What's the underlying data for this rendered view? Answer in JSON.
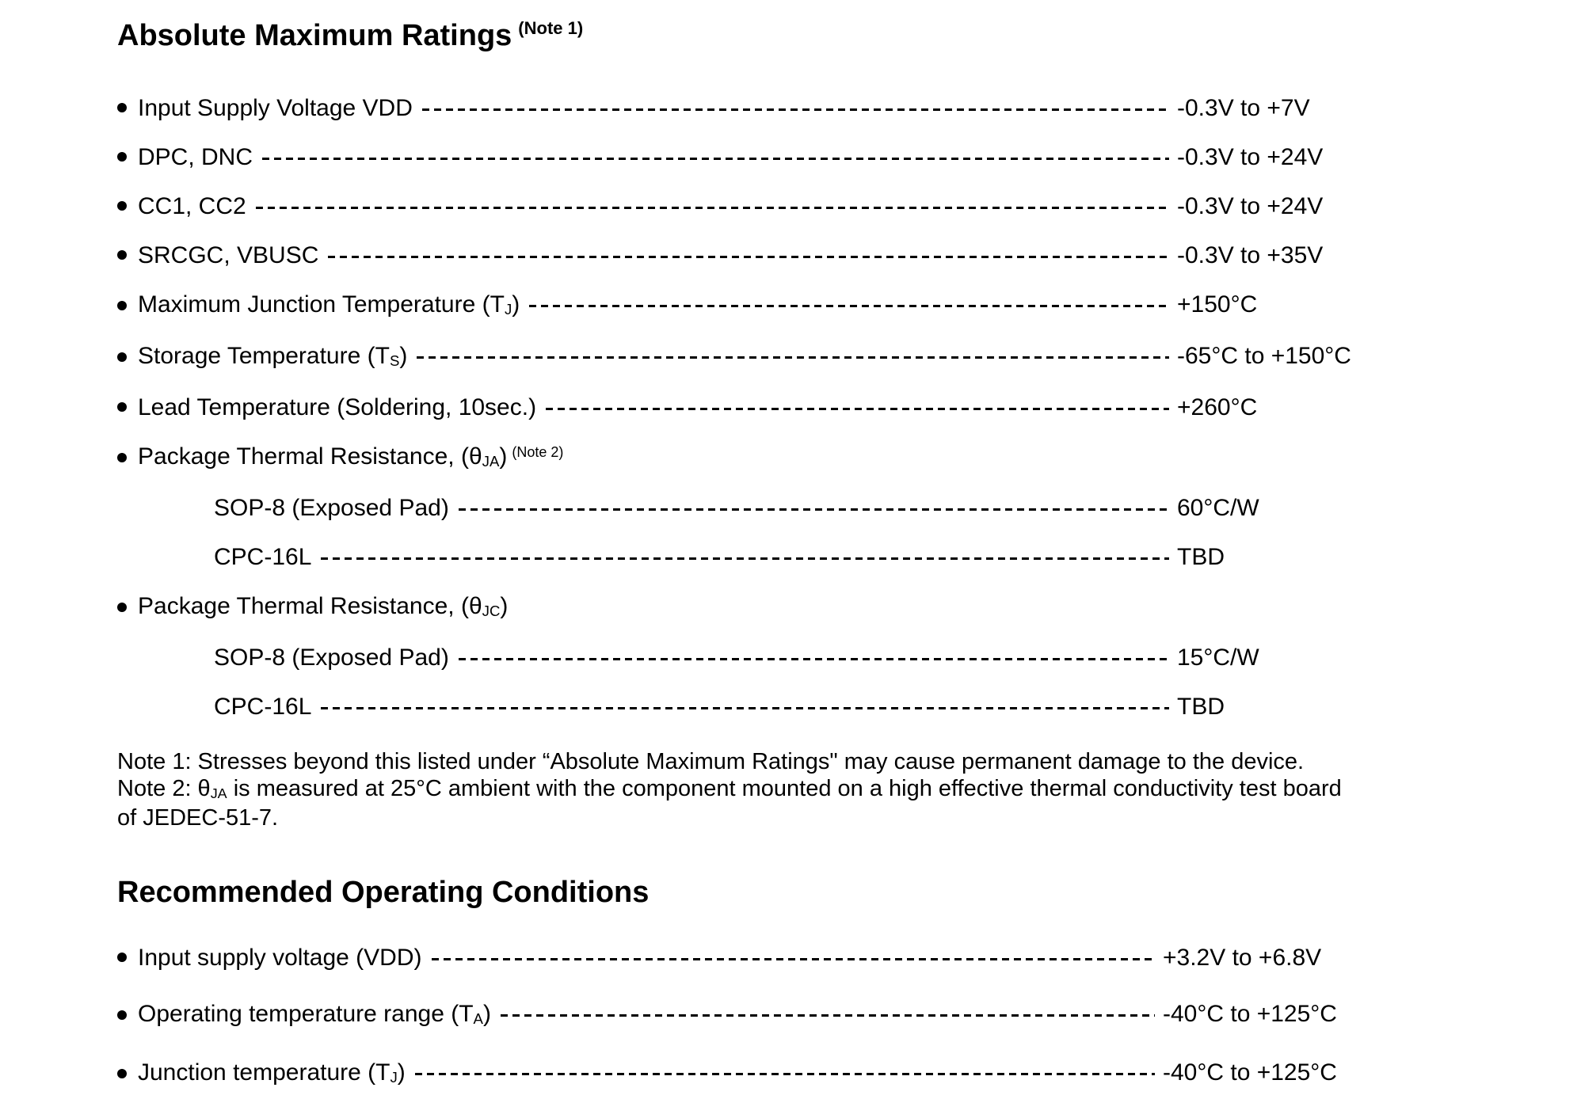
{
  "colors": {
    "text": "#000000",
    "background": "#ffffff"
  },
  "doc": {
    "sections": [
      {
        "id": "amr",
        "title": "Absolute Maximum Ratings",
        "title_sup": "(Note 1)",
        "rows": [
          {
            "bullet": true,
            "indent": false,
            "parts": [
              {
                "t": "Input Supply Voltage VDD"
              }
            ],
            "leader": true,
            "value": "-0.3V to +7V"
          },
          {
            "bullet": true,
            "indent": false,
            "parts": [
              {
                "t": "DPC, DNC"
              }
            ],
            "leader": true,
            "value": "-0.3V to +24V"
          },
          {
            "bullet": true,
            "indent": false,
            "parts": [
              {
                "t": "CC1, CC2"
              }
            ],
            "leader": true,
            "value": "-0.3V to +24V"
          },
          {
            "bullet": true,
            "indent": false,
            "parts": [
              {
                "t": "SRCGC, VBUSC"
              }
            ],
            "leader": true,
            "value": "-0.3V to +35V"
          },
          {
            "bullet": true,
            "indent": false,
            "parts": [
              {
                "t": "Maximum Junction Temperature (T"
              },
              {
                "t": "J",
                "style": "sub"
              },
              {
                "t": ")"
              }
            ],
            "leader": true,
            "value": "+150°C"
          },
          {
            "bullet": true,
            "indent": false,
            "parts": [
              {
                "t": "Storage Temperature (T"
              },
              {
                "t": "S",
                "style": "sub"
              },
              {
                "t": ")"
              }
            ],
            "leader": true,
            "value": "-65°C to +150°C"
          },
          {
            "bullet": true,
            "indent": false,
            "parts": [
              {
                "t": "Lead Temperature (Soldering, 10sec.)"
              }
            ],
            "leader": true,
            "value": "+260°C"
          },
          {
            "bullet": true,
            "indent": false,
            "parts": [
              {
                "t": "Package Thermal Resistance, (θ"
              },
              {
                "t": "JA",
                "style": "sub"
              },
              {
                "t": ")"
              },
              {
                "t": "(Note 2)",
                "style": "sup"
              }
            ],
            "leader": false,
            "value": ""
          },
          {
            "bullet": false,
            "indent": true,
            "parts": [
              {
                "t": "SOP-8 (Exposed Pad)"
              }
            ],
            "leader": true,
            "value": "60°C/W"
          },
          {
            "bullet": false,
            "indent": true,
            "parts": [
              {
                "t": "CPC-16L"
              }
            ],
            "leader": true,
            "value": "TBD"
          },
          {
            "bullet": true,
            "indent": false,
            "parts": [
              {
                "t": "Package Thermal Resistance, (θ"
              },
              {
                "t": "JC",
                "style": "sub"
              },
              {
                "t": ")"
              }
            ],
            "leader": false,
            "value": ""
          },
          {
            "bullet": false,
            "indent": true,
            "parts": [
              {
                "t": "SOP-8 (Exposed Pad)"
              }
            ],
            "leader": true,
            "value": "15°C/W"
          },
          {
            "bullet": false,
            "indent": true,
            "parts": [
              {
                "t": "CPC-16L"
              }
            ],
            "leader": true,
            "value": "TBD"
          }
        ],
        "notes": [
          [
            {
              "t": "Note 1: Stresses beyond this listed under “Absolute Maximum Ratings\" may cause permanent damage to the device."
            }
          ],
          [
            {
              "t": "Note 2: θ"
            },
            {
              "t": "JA",
              "style": "sub"
            },
            {
              "t": " is measured at 25°C ambient with the component mounted on a high effective thermal conductivity test board"
            }
          ],
          [
            {
              "t": "of JEDEC-51-7."
            }
          ]
        ]
      },
      {
        "id": "roc",
        "title": "Recommended Operating Conditions",
        "title_sup": "",
        "rows": [
          {
            "bullet": true,
            "indent": false,
            "parts": [
              {
                "t": "Input supply voltage (VDD)"
              }
            ],
            "leader": true,
            "value": "+3.2V to +6.8V"
          },
          {
            "bullet": true,
            "indent": false,
            "parts": [
              {
                "t": "Operating temperature range (T"
              },
              {
                "t": "A",
                "style": "sub"
              },
              {
                "t": ")"
              }
            ],
            "leader": true,
            "value": "-40°C to +125°C"
          },
          {
            "bullet": true,
            "indent": false,
            "parts": [
              {
                "t": "Junction temperature (T"
              },
              {
                "t": "J",
                "style": "sub"
              },
              {
                "t": ")"
              }
            ],
            "leader": true,
            "value": "-40°C to +125°C"
          }
        ],
        "notes": []
      }
    ]
  }
}
